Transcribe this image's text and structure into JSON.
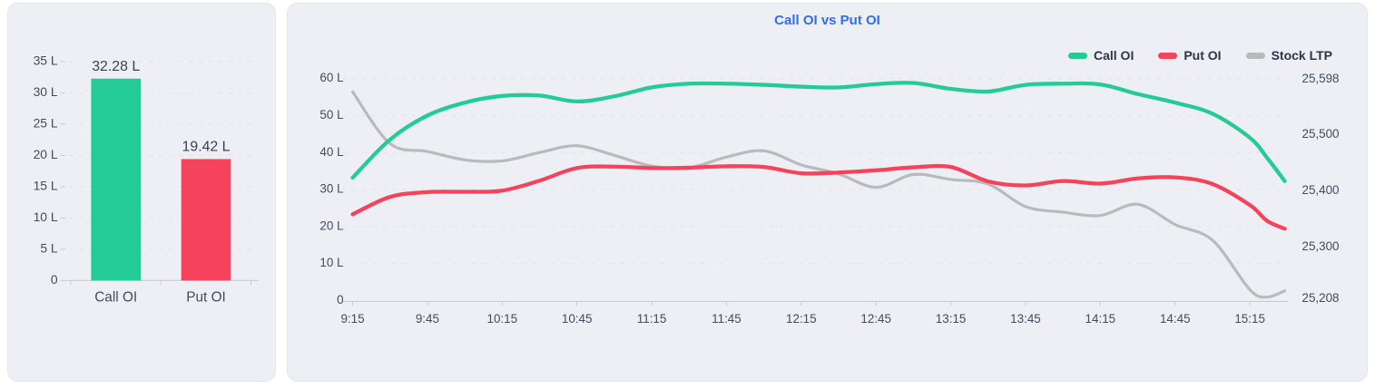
{
  "colors": {
    "page_bg": "#ffffff",
    "card_bg": "#edeff4",
    "card_border": "#e2e5ec",
    "title_text": "#2f6df3",
    "axis_text": "#434c5b",
    "legend_text": "#2d3648",
    "value_label_text": "#3a4150",
    "grid_line": "#e0e3e9",
    "axis_line": "#c9ccd5",
    "call_oi": "#24cb96",
    "put_oi": "#f4435a",
    "stock_ltp": "#b9babd"
  },
  "legend": [
    {
      "label": "Call OI",
      "color": "#24cb96"
    },
    {
      "label": "Put OI",
      "color": "#f4435a"
    },
    {
      "label": "Stock LTP",
      "color": "#b9babd"
    }
  ],
  "chart_data": [
    {
      "type": "bar",
      "title": "",
      "categories": [
        "Call OI",
        "Put OI"
      ],
      "values": [
        32.28,
        19.42
      ],
      "value_labels": [
        "32.28 L",
        "19.42 L"
      ],
      "bar_colors": [
        "#24cb96",
        "#f4435a"
      ],
      "ylim": [
        0,
        35
      ],
      "grid": "dashed-horizontal",
      "y_ticks": [
        {
          "v": 0,
          "label": "0"
        },
        {
          "v": 5,
          "label": "5 L"
        },
        {
          "v": 10,
          "label": "10 L"
        },
        {
          "v": 15,
          "label": "15 L"
        },
        {
          "v": 20,
          "label": "20 L"
        },
        {
          "v": 25,
          "label": "25 L"
        },
        {
          "v": 30,
          "label": "30 L"
        },
        {
          "v": 35,
          "label": "35 L"
        }
      ]
    },
    {
      "type": "line",
      "title": "Call OI vs Put OI",
      "grid": "dashed-horizontal",
      "legend_position": "top-right",
      "x_minutes": [
        0,
        15,
        30,
        45,
        60,
        75,
        90,
        105,
        120,
        135,
        150,
        165,
        180,
        195,
        210,
        225,
        240,
        255,
        270,
        285,
        300,
        315,
        330,
        345,
        360,
        367,
        374
      ],
      "x_times": [
        "9:15",
        "9:30",
        "9:45",
        "10:00",
        "10:15",
        "10:30",
        "10:45",
        "11:00",
        "11:15",
        "11:30",
        "11:45",
        "12:00",
        "12:15",
        "12:30",
        "12:45",
        "13:00",
        "13:15",
        "13:30",
        "13:45",
        "14:00",
        "14:15",
        "14:30",
        "14:45",
        "15:00",
        "15:15",
        "15:22",
        "15:29"
      ],
      "x_axis_ticks": [
        {
          "t": 0,
          "label": "9:15"
        },
        {
          "t": 30,
          "label": "9:45"
        },
        {
          "t": 60,
          "label": "10:15"
        },
        {
          "t": 90,
          "label": "10:45"
        },
        {
          "t": 120,
          "label": "11:15"
        },
        {
          "t": 150,
          "label": "11:45"
        },
        {
          "t": 180,
          "label": "12:15"
        },
        {
          "t": 210,
          "label": "12:45"
        },
        {
          "t": 240,
          "label": "13:15"
        },
        {
          "t": 270,
          "label": "13:45"
        },
        {
          "t": 300,
          "label": "14:15"
        },
        {
          "t": 330,
          "label": "14:45"
        },
        {
          "t": 360,
          "label": "15:15"
        }
      ],
      "left_axis": {
        "min": 0,
        "max": 60,
        "ticks": [
          {
            "v": 0,
            "label": "0"
          },
          {
            "v": 10,
            "label": "10 L"
          },
          {
            "v": 20,
            "label": "20 L"
          },
          {
            "v": 30,
            "label": "30 L"
          },
          {
            "v": 40,
            "label": "40 L"
          },
          {
            "v": 50,
            "label": "50 L"
          },
          {
            "v": 60,
            "label": "60 L"
          }
        ]
      },
      "right_axis": {
        "min": 25208,
        "max": 25598,
        "ticks": [
          {
            "v": 25208,
            "label": "25,208"
          },
          {
            "v": 25300,
            "label": "25,300"
          },
          {
            "v": 25400,
            "label": "25,400"
          },
          {
            "v": 25500,
            "label": "25,500"
          },
          {
            "v": 25598,
            "label": "25,598"
          }
        ]
      },
      "series": [
        {
          "name": "Stock LTP",
          "axis": "right",
          "color": "#b9babd",
          "width": 3.2,
          "values": [
            25576,
            25484,
            25470,
            25455,
            25453,
            25468,
            25480,
            25463,
            25444,
            25441,
            25460,
            25471,
            25446,
            25430,
            25406,
            25429,
            25420,
            25412,
            25372,
            25362,
            25356,
            25376,
            25340,
            25312,
            25224,
            25211,
            25222
          ]
        },
        {
          "name": "Put OI",
          "axis": "left",
          "color": "#f4435a",
          "width": 4.3,
          "values": [
            23.3,
            28.0,
            29.3,
            29.4,
            29.7,
            32.4,
            35.8,
            36.2,
            35.8,
            35.9,
            36.3,
            36.1,
            34.4,
            34.6,
            35.2,
            36.0,
            36.1,
            32.2,
            31.1,
            32.3,
            31.6,
            33.0,
            33.3,
            31.5,
            25.8,
            21.5,
            19.42
          ]
        },
        {
          "name": "Call OI",
          "axis": "left",
          "color": "#24cb96",
          "width": 4.3,
          "values": [
            33.2,
            43.5,
            50.0,
            53.5,
            55.3,
            55.4,
            53.8,
            55.2,
            57.6,
            58.6,
            58.6,
            58.3,
            57.8,
            57.6,
            58.5,
            58.8,
            57.2,
            56.5,
            58.3,
            58.6,
            58.4,
            55.8,
            53.5,
            50.5,
            44.0,
            38.5,
            32.28
          ]
        }
      ]
    }
  ]
}
